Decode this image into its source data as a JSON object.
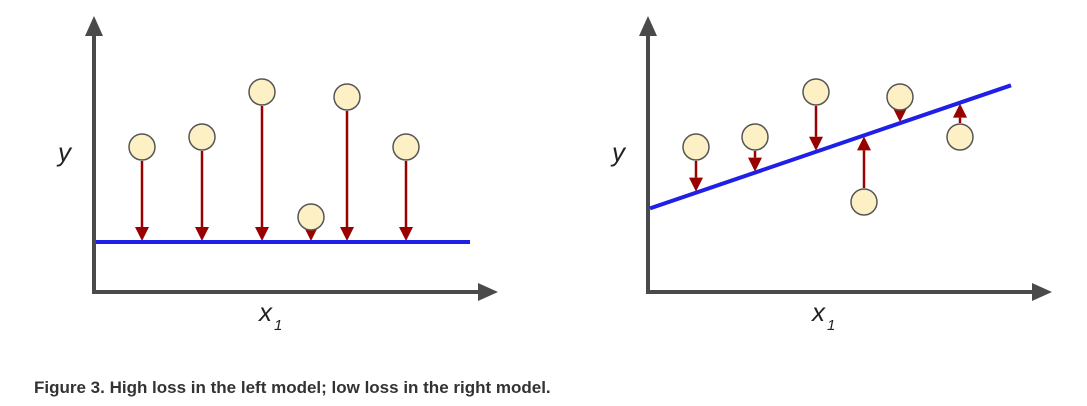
{
  "caption": "Figure 3. High loss in the left model; low loss in the right model.",
  "colors": {
    "axis": "#4a4a4a",
    "regression_line": "#1f1fe6",
    "residual_arrow": "#990000",
    "point_fill": "#fdf0c4",
    "point_stroke": "#555555",
    "text": "#222222"
  },
  "panels": [
    {
      "id": "left",
      "y_label": "y",
      "x_label": "x",
      "x_label_subscript": "1",
      "line": {
        "intercept": 1.0,
        "slope": 0.0
      },
      "points": [
        {
          "x": 1.0,
          "y": 2.9
        },
        {
          "x": 2.2,
          "y": 3.1
        },
        {
          "x": 3.4,
          "y": 4.0
        },
        {
          "x": 4.4,
          "y": 1.5
        },
        {
          "x": 5.1,
          "y": 3.9
        },
        {
          "x": 6.3,
          "y": 2.9
        }
      ]
    },
    {
      "id": "right",
      "y_label": "y",
      "x_label": "x",
      "x_label_subscript": "1",
      "line": {
        "intercept": 2.0,
        "slope": 0.3
      },
      "points": [
        {
          "x": 1.0,
          "y": 2.9
        },
        {
          "x": 2.2,
          "y": 3.1
        },
        {
          "x": 3.4,
          "y": 4.0
        },
        {
          "x": 4.4,
          "y": 1.8
        },
        {
          "x": 5.1,
          "y": 3.9
        },
        {
          "x": 6.3,
          "y": 3.1
        }
      ]
    }
  ]
}
